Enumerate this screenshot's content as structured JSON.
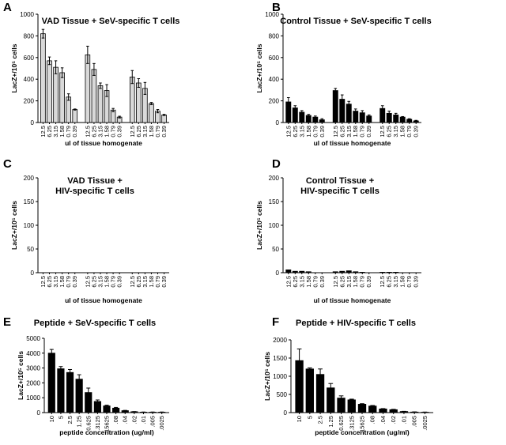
{
  "chart_data": [
    {
      "type": "bar",
      "panel": "A",
      "title": "VAD Tissue + SeV-specific T cells",
      "y_label": "LacZ+/10⁵ cells",
      "x_label": "ul of tissue homogenate",
      "categories": [
        "12.5",
        "6.25",
        "3.15",
        "1.58",
        "0.79",
        "0.39",
        "12.5",
        "6.25",
        "3.15",
        "1.58",
        "0.79",
        "0.39",
        "12.5",
        "6.25",
        "3.15",
        "1.58",
        "0.79",
        "0.39"
      ],
      "values": [
        820,
        570,
        510,
        460,
        235,
        120,
        625,
        490,
        340,
        295,
        115,
        50,
        420,
        365,
        315,
        175,
        105,
        70
      ],
      "errors": [
        40,
        35,
        60,
        45,
        30,
        5,
        80,
        55,
        25,
        55,
        15,
        8,
        60,
        40,
        55,
        10,
        15,
        5
      ],
      "color": "#d9d9d9",
      "ylim": [
        0,
        1000
      ],
      "yticks": [
        0,
        200,
        400,
        600,
        800,
        1000
      ]
    },
    {
      "type": "bar",
      "panel": "B",
      "title": "Control Tissue + SeV-specific T cells",
      "y_label": "LacZ+/10⁵ cells",
      "x_label": "ul of tissue homogenate",
      "categories": [
        "12.5",
        "6.25",
        "3.15",
        "1.58",
        "0.79",
        "0.39",
        "12.5",
        "6.25",
        "3.15",
        "1.58",
        "0.79",
        "0.39",
        "12.5",
        "6.25",
        "3.15",
        "1.58",
        "0.79",
        "0.39"
      ],
      "values": [
        190,
        135,
        95,
        65,
        50,
        25,
        295,
        215,
        170,
        105,
        90,
        60,
        130,
        85,
        70,
        50,
        30,
        15
      ],
      "errors": [
        40,
        20,
        15,
        10,
        10,
        10,
        20,
        40,
        25,
        20,
        20,
        10,
        25,
        20,
        15,
        5,
        5,
        5
      ],
      "color": "#000000",
      "ylim": [
        0,
        1000
      ],
      "yticks": [
        0,
        200,
        400,
        600,
        800,
        1000
      ]
    },
    {
      "type": "bar",
      "panel": "C",
      "title": [
        "VAD Tissue +",
        "HIV-specific T cells"
      ],
      "y_label": "LacZ+/10⁵ cells",
      "x_label": "ul of tissue homogenate",
      "categories": [
        "12.5",
        "6.25",
        "3.15",
        "1.58",
        "0.79",
        "0.39",
        "12.5",
        "6.25",
        "3.15",
        "1.58",
        "0.79",
        "0.39",
        "12.5",
        "6.25",
        "3.15",
        "1.58",
        "0.79",
        "0.39"
      ],
      "values": [
        0,
        0,
        0,
        0,
        0,
        0,
        0,
        0,
        0,
        0,
        0,
        0,
        0,
        0,
        0,
        0,
        0,
        0
      ],
      "color": "#000000",
      "ylim": [
        0,
        200
      ],
      "yticks": [
        0,
        50,
        100,
        150,
        200
      ]
    },
    {
      "type": "bar",
      "panel": "D",
      "title": [
        "Control Tissue +",
        "HIV-specific T cells"
      ],
      "y_label": "LacZ+/10⁵ cells",
      "x_label": "ul of tissue homogenate",
      "categories": [
        "12.5",
        "6.25",
        "3.15",
        "1.58",
        "0.79",
        "0.39",
        "12.5",
        "6.25",
        "3.15",
        "1.58",
        "0.79",
        "0.39",
        "12.5",
        "6.25",
        "3.15",
        "1.58",
        "0.79",
        "0.39"
      ],
      "values": [
        6,
        3,
        3,
        2,
        0,
        0,
        2,
        3,
        4,
        2,
        1,
        0,
        1,
        1,
        1,
        0,
        0,
        0
      ],
      "color": "#000000",
      "ylim": [
        0,
        200
      ],
      "yticks": [
        0,
        50,
        100,
        150,
        200
      ]
    },
    {
      "type": "bar",
      "panel": "E",
      "title": "Peptide + SeV-specific T cells",
      "y_label": "LacZ+/10⁵ cells",
      "x_label": "peptide concentration (ug/ml)",
      "categories": [
        "10",
        "5",
        "2.5",
        "1.25",
        "0.625",
        ".3125",
        ".15625",
        ".08",
        ".04",
        ".02",
        ".01",
        ".005",
        ".0025"
      ],
      "values": [
        4000,
        2950,
        2700,
        2250,
        1350,
        750,
        450,
        300,
        130,
        60,
        30,
        30,
        30
      ],
      "errors": [
        250,
        150,
        200,
        300,
        300,
        100,
        50,
        50,
        20,
        10,
        10,
        10,
        10
      ],
      "color": "#000000",
      "ylim": [
        0,
        5000
      ],
      "yticks": [
        0,
        1000,
        2000,
        3000,
        4000,
        5000
      ]
    },
    {
      "type": "bar",
      "panel": "F",
      "title": "Peptide + HIV-specific T cells",
      "y_label": "LacZ+/10⁵ cells",
      "x_label": "peptide concentration (ug/ml)",
      "categories": [
        "10",
        "5",
        "2.5",
        "1.25",
        "0.625",
        ".3125",
        ".15625",
        ".08",
        ".04",
        ".02",
        ".01",
        ".005",
        ".0025"
      ],
      "values": [
        1430,
        1200,
        1050,
        680,
        400,
        350,
        230,
        180,
        100,
        80,
        30,
        15,
        10
      ],
      "errors": [
        320,
        30,
        150,
        120,
        60,
        20,
        15,
        15,
        10,
        10,
        5,
        5,
        5
      ],
      "color": "#000000",
      "ylim": [
        0,
        2000
      ],
      "yticks": [
        0,
        500,
        1000,
        1500,
        2000
      ]
    }
  ]
}
